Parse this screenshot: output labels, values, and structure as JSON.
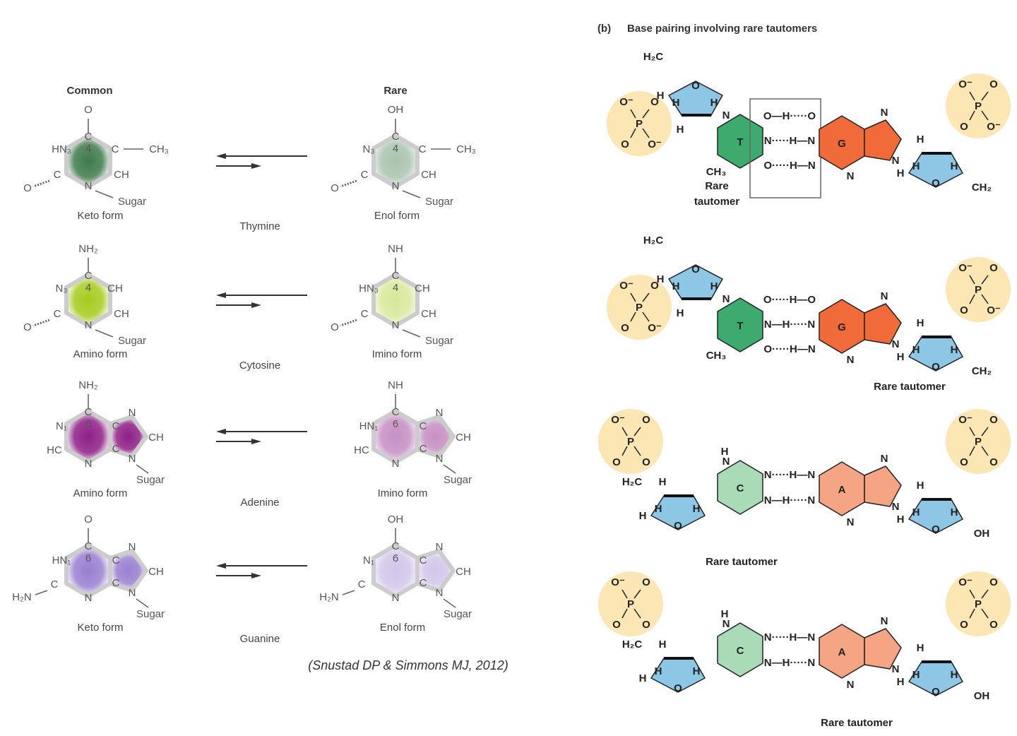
{
  "left_panel": {
    "headers": {
      "common": "Common",
      "rare": "Rare"
    },
    "citation": "(Snustad DP & Simmons MJ, 2012)",
    "rows": [
      {
        "base": "Thymine",
        "kind": "pyrimidine",
        "color": "#3f7a4a",
        "common": {
          "form": "Keto form",
          "atoms": {
            "top": "O",
            "c4": "C",
            "n3": "HN₃",
            "c5": "C",
            "sub5": "CH₃",
            "c2": "C",
            "o2": "O",
            "c6": "CH",
            "n1": "N",
            "sugar": "Sugar",
            "num": "4"
          },
          "shade": 1.0
        },
        "rare": {
          "form": "Enol form",
          "atoms": {
            "top": "OH",
            "c4": "C",
            "n3": "N₃",
            "c5": "C",
            "sub5": "CH₃",
            "c2": "C",
            "o2": "O",
            "c6": "CH",
            "n1": "N",
            "sugar": "Sugar",
            "num": "4"
          },
          "shade": 0.45
        }
      },
      {
        "base": "Cytosine",
        "kind": "pyrimidine",
        "color": "#a6cc1f",
        "common": {
          "form": "Amino form",
          "atoms": {
            "top": "NH₂",
            "c4": "C",
            "n3": "N₃",
            "c5": "CH",
            "c2": "C",
            "o2": "O",
            "c6": "CH",
            "n1": "N",
            "sugar": "Sugar",
            "num": "4"
          },
          "shade": 1.0
        },
        "rare": {
          "form": "Imino form",
          "atoms": {
            "top": "NH",
            "c4": "C",
            "n3": "HN₃",
            "c5": "CH",
            "c2": "C",
            "o2": "O",
            "c6": "CH",
            "n1": "N",
            "sugar": "Sugar",
            "num": "4"
          },
          "shade": 0.45
        }
      },
      {
        "base": "Adenine",
        "kind": "purine",
        "color": "#8e1f86",
        "common": {
          "form": "Amino form",
          "atoms": {
            "top": "NH₂",
            "c6": "C",
            "n1": "N₁",
            "c5": "C",
            "n7": "N",
            "c8": "CH",
            "n9": "N",
            "sugar": "Sugar",
            "c2": "HC",
            "n3": "N",
            "c4": "C",
            "num": "6"
          },
          "shade": 1.0
        },
        "rare": {
          "form": "Imino form",
          "atoms": {
            "top": "NH",
            "c6": "C",
            "n1": "HN₁",
            "c5": "C",
            "n7": "N",
            "c8": "CH",
            "n9": "N",
            "sugar": "Sugar",
            "c2": "HC",
            "n3": "N",
            "c4": "C",
            "num": "6"
          },
          "shade": 0.5
        }
      },
      {
        "base": "Guanine",
        "kind": "purine",
        "color": "#9a7fd0",
        "common": {
          "form": "Keto form",
          "atoms": {
            "top": "O",
            "c6": "C",
            "n1": "HN₁",
            "c5": "C",
            "n7": "N",
            "c8": "CH",
            "n9": "N",
            "sugar": "Sugar",
            "c2": "C",
            "n3": "N",
            "c4": "C",
            "sub2": "H₂N",
            "num": "6"
          },
          "shade": 1.0
        },
        "rare": {
          "form": "Enol form",
          "atoms": {
            "top": "OH",
            "c6": "C",
            "n1": "N₁",
            "c5": "C",
            "n7": "N",
            "c8": "CH",
            "n9": "N",
            "sugar": "Sugar",
            "c2": "C",
            "n3": "N",
            "c4": "C",
            "sub2": "H₂N",
            "num": "6"
          },
          "shade": 0.45
        }
      }
    ]
  },
  "right_panel": {
    "title_tag": "(b)",
    "title": "Base pairing involving rare tautomers",
    "colors": {
      "T": "#3daa6e",
      "G": "#f06a3a",
      "C": "#a9dcb6",
      "A": "#f6a584",
      "sugar": "#8ec6e6",
      "phosphate": "#fbe6b4"
    },
    "panels": [
      {
        "left_base": "T",
        "right_base": "G",
        "tautomer_label": "Rare tautomer",
        "tautomer_on": "left",
        "boxed": true,
        "hbonds": [
          "O—H·····O",
          "N·····H—N",
          "O·····H—N"
        ],
        "phosphate": [
          "O⁻",
          "P",
          "O",
          "O⁻",
          "O"
        ],
        "sugar_o": "O",
        "h": "H",
        "left_sub": "CH₃",
        "left_top": "H₂C",
        "right_end": "CH₂"
      },
      {
        "left_base": "T",
        "right_base": "G",
        "tautomer_label": "Rare tautomer",
        "tautomer_on": "right",
        "boxed": false,
        "hbonds": [
          "O·····H—O",
          "N—H·····N",
          "O·····H—N"
        ],
        "phosphate": [
          "O⁻",
          "P",
          "O",
          "O⁻",
          "O"
        ],
        "sugar_o": "O",
        "h": "H",
        "left_sub": "CH₃",
        "left_top": "H₂C",
        "right_end": "CH₂"
      },
      {
        "left_base": "C",
        "right_base": "A",
        "tautomer_label": "Rare tautomer",
        "tautomer_on": "left",
        "boxed": false,
        "hbonds": [
          "N·····H—N",
          "N—H·····N"
        ],
        "phosphate": [
          "O⁻",
          "P",
          "O",
          "O",
          "O"
        ],
        "sugar_o": "O",
        "h": "H",
        "left_sub": "H",
        "left_top": "H₂C",
        "right_end": "OH"
      },
      {
        "left_base": "C",
        "right_base": "A",
        "tautomer_label": "Rare tautomer",
        "tautomer_on": "right",
        "boxed": false,
        "hbonds": [
          "N·····H—N",
          "N—H·····N"
        ],
        "phosphate": [
          "O⁻",
          "P",
          "O",
          "O",
          "O"
        ],
        "sugar_o": "O",
        "h": "H",
        "left_sub": "H",
        "left_top": "H₂C",
        "right_end": "OH"
      }
    ]
  }
}
